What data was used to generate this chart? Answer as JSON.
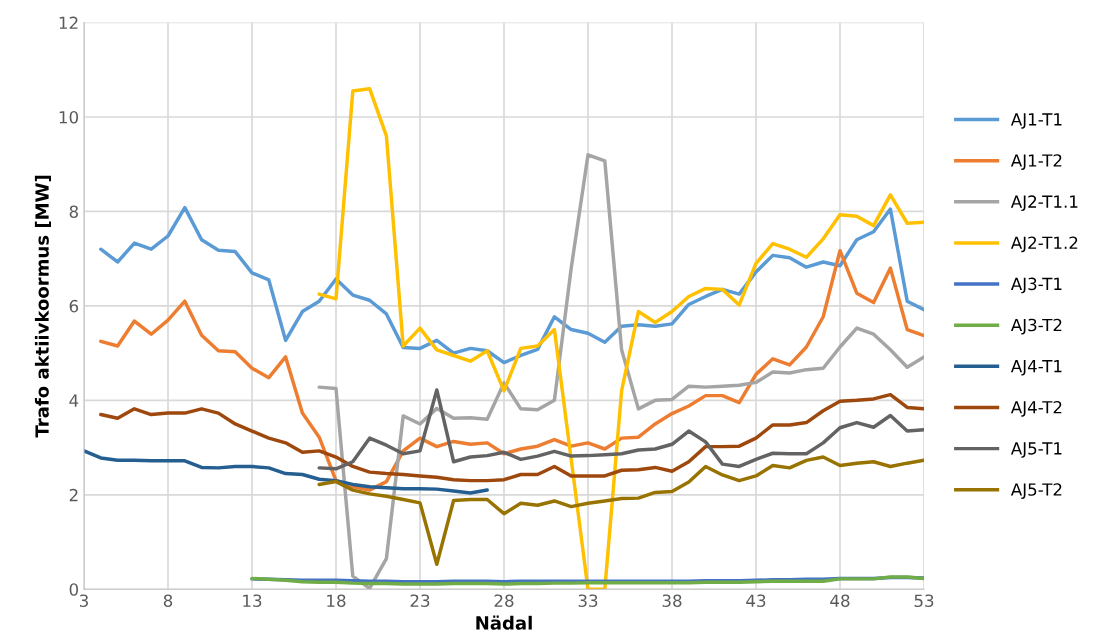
{
  "chart_data": {
    "type": "line",
    "xlabel": "Nädal",
    "ylabel": "Trafo aktiivkoormus [MW]",
    "xlim": [
      3,
      53
    ],
    "xticks": [
      3,
      8,
      13,
      18,
      23,
      28,
      33,
      38,
      43,
      48,
      53
    ],
    "ylim": [
      0,
      12
    ],
    "yticks": [
      0,
      2,
      4,
      6,
      8,
      10,
      12
    ],
    "grid": true,
    "legend": "right",
    "marker": "none",
    "line_style": "solid",
    "series": [
      {
        "name": "AJ1-T1",
        "color": "#5b9bd5",
        "x": [
          4,
          5,
          6,
          7,
          8,
          9,
          10,
          11,
          12,
          13,
          14,
          15,
          16,
          17,
          18,
          19,
          20,
          21,
          22,
          23,
          24,
          25,
          26,
          27,
          28,
          29,
          30,
          31,
          32,
          33,
          34,
          35,
          36,
          37,
          38,
          39,
          40,
          41,
          42,
          43,
          44,
          45,
          46,
          47,
          48,
          49,
          50,
          51,
          52,
          53
        ],
        "values": [
          7.2,
          6.93,
          7.33,
          7.2,
          7.48,
          8.08,
          7.4,
          7.18,
          7.15,
          6.7,
          6.55,
          5.27,
          5.88,
          6.1,
          6.57,
          6.23,
          6.12,
          5.83,
          5.12,
          5.1,
          5.27,
          5.0,
          5.1,
          5.05,
          4.8,
          4.95,
          5.08,
          5.77,
          5.5,
          5.42,
          5.23,
          5.57,
          5.6,
          5.57,
          5.62,
          6.03,
          6.2,
          6.35,
          6.25,
          6.72,
          7.07,
          7.02,
          6.82,
          6.93,
          6.85,
          7.4,
          7.57,
          8.05,
          6.1,
          5.92
        ]
      },
      {
        "name": "AJ1-T2",
        "color": "#ed7d31",
        "x": [
          4,
          5,
          6,
          7,
          8,
          9,
          10,
          11,
          12,
          13,
          14,
          15,
          16,
          17,
          18,
          19,
          20,
          21,
          22,
          23,
          24,
          25,
          26,
          27,
          28,
          29,
          30,
          31,
          32,
          33,
          34,
          35,
          36,
          37,
          38,
          39,
          40,
          41,
          42,
          43,
          44,
          45,
          46,
          47,
          48,
          49,
          50,
          51,
          52,
          53
        ],
        "values": [
          5.25,
          5.15,
          5.68,
          5.4,
          5.7,
          6.1,
          5.38,
          5.05,
          5.03,
          4.68,
          4.48,
          4.92,
          3.73,
          3.22,
          2.3,
          2.17,
          2.1,
          2.28,
          2.93,
          3.2,
          3.02,
          3.13,
          3.07,
          3.1,
          2.87,
          2.97,
          3.03,
          3.17,
          3.03,
          3.1,
          2.97,
          3.2,
          3.22,
          3.5,
          3.72,
          3.88,
          4.1,
          4.1,
          3.95,
          4.55,
          4.88,
          4.75,
          5.13,
          5.77,
          7.17,
          6.27,
          6.07,
          6.8,
          5.5,
          5.37
        ]
      },
      {
        "name": "AJ2-T1.1",
        "color": "#a5a5a5",
        "x": [
          17,
          18,
          19,
          20,
          21,
          22,
          23,
          24,
          25,
          26,
          27,
          28,
          29,
          30,
          31,
          32,
          33,
          34,
          35,
          36,
          37,
          38,
          39,
          40,
          41,
          42,
          43,
          44,
          45,
          46,
          47,
          48,
          49,
          50,
          51,
          52,
          53
        ],
        "values": [
          4.28,
          4.25,
          0.28,
          0.02,
          0.65,
          3.67,
          3.5,
          3.83,
          3.62,
          3.63,
          3.6,
          4.37,
          3.82,
          3.8,
          4.0,
          6.8,
          9.2,
          9.07,
          5.07,
          3.82,
          4.0,
          4.02,
          4.3,
          4.28,
          4.3,
          4.32,
          4.38,
          4.6,
          4.58,
          4.65,
          4.68,
          5.13,
          5.53,
          5.4,
          5.07,
          4.7,
          4.92
        ]
      },
      {
        "name": "AJ2-T1.2",
        "color": "#ffc000",
        "x": [
          17,
          18,
          19,
          20,
          21,
          22,
          23,
          24,
          25,
          26,
          27,
          28,
          29,
          30,
          31,
          32,
          33,
          34,
          35,
          36,
          37,
          38,
          39,
          40,
          41,
          42,
          43,
          44,
          45,
          46,
          47,
          48,
          49,
          50,
          51,
          52,
          53
        ],
        "values": [
          6.25,
          6.15,
          10.55,
          10.6,
          9.6,
          5.15,
          5.53,
          5.07,
          4.95,
          4.83,
          5.05,
          4.2,
          5.1,
          5.15,
          5.5,
          2.75,
          0.0,
          0.0,
          4.2,
          5.88,
          5.65,
          5.88,
          6.2,
          6.37,
          6.35,
          6.02,
          6.9,
          7.32,
          7.2,
          7.03,
          7.42,
          7.93,
          7.9,
          7.7,
          8.35,
          7.75,
          7.77
        ]
      },
      {
        "name": "AJ3-T1",
        "color": "#4472c4",
        "x": [
          13,
          14,
          15,
          16,
          17,
          18,
          19,
          20,
          21,
          22,
          23,
          24,
          25,
          26,
          27,
          28,
          29,
          30,
          31,
          32,
          33,
          34,
          35,
          36,
          37,
          38,
          39,
          40,
          41,
          42,
          43,
          44,
          45,
          46,
          47,
          48,
          49,
          50,
          51,
          52,
          53
        ],
        "values": [
          0.22,
          0.21,
          0.2,
          0.19,
          0.19,
          0.19,
          0.18,
          0.17,
          0.17,
          0.16,
          0.16,
          0.16,
          0.17,
          0.17,
          0.17,
          0.16,
          0.17,
          0.17,
          0.17,
          0.17,
          0.17,
          0.17,
          0.17,
          0.17,
          0.17,
          0.17,
          0.17,
          0.18,
          0.18,
          0.18,
          0.19,
          0.2,
          0.2,
          0.21,
          0.21,
          0.23,
          0.23,
          0.23,
          0.25,
          0.25,
          0.24
        ]
      },
      {
        "name": "AJ3-T2",
        "color": "#70ad47",
        "x": [
          13,
          14,
          15,
          16,
          17,
          18,
          19,
          20,
          21,
          22,
          23,
          24,
          25,
          26,
          27,
          28,
          29,
          30,
          31,
          32,
          33,
          34,
          35,
          36,
          37,
          38,
          39,
          40,
          41,
          42,
          43,
          44,
          45,
          46,
          47,
          48,
          49,
          50,
          51,
          52,
          53
        ],
        "values": [
          0.23,
          0.21,
          0.19,
          0.16,
          0.15,
          0.15,
          0.13,
          0.12,
          0.12,
          0.11,
          0.11,
          0.11,
          0.12,
          0.12,
          0.12,
          0.11,
          0.12,
          0.12,
          0.13,
          0.13,
          0.14,
          0.14,
          0.14,
          0.14,
          0.14,
          0.14,
          0.14,
          0.15,
          0.15,
          0.15,
          0.16,
          0.17,
          0.17,
          0.17,
          0.17,
          0.22,
          0.22,
          0.22,
          0.26,
          0.26,
          0.23
        ]
      },
      {
        "name": "AJ4-T1",
        "color": "#255e91",
        "x": [
          3,
          4,
          5,
          6,
          7,
          8,
          9,
          10,
          11,
          12,
          13,
          14,
          15,
          16,
          17,
          18,
          19,
          20,
          21,
          22,
          23,
          24,
          25,
          26,
          27
        ],
        "values": [
          2.93,
          2.78,
          2.73,
          2.73,
          2.72,
          2.72,
          2.72,
          2.58,
          2.57,
          2.6,
          2.6,
          2.57,
          2.45,
          2.43,
          2.33,
          2.3,
          2.22,
          2.17,
          2.15,
          2.13,
          2.13,
          2.12,
          2.08,
          2.04,
          2.1
        ]
      },
      {
        "name": "AJ4-T2",
        "color": "#9e480e",
        "x": [
          4,
          5,
          6,
          7,
          8,
          9,
          10,
          11,
          12,
          13,
          14,
          15,
          16,
          17,
          18,
          19,
          20,
          21,
          22,
          23,
          24,
          25,
          26,
          27,
          28,
          29,
          30,
          31,
          32,
          33,
          34,
          35,
          36,
          37,
          38,
          39,
          40,
          41,
          42,
          43,
          44,
          45,
          46,
          47,
          48,
          49,
          50,
          51,
          52,
          53
        ],
        "values": [
          3.7,
          3.62,
          3.82,
          3.7,
          3.73,
          3.73,
          3.82,
          3.73,
          3.5,
          3.35,
          3.2,
          3.1,
          2.9,
          2.93,
          2.8,
          2.6,
          2.48,
          2.45,
          2.43,
          2.4,
          2.37,
          2.32,
          2.3,
          2.3,
          2.32,
          2.43,
          2.43,
          2.6,
          2.4,
          2.4,
          2.4,
          2.52,
          2.53,
          2.58,
          2.5,
          2.7,
          3.02,
          3.02,
          3.03,
          3.2,
          3.48,
          3.48,
          3.53,
          3.78,
          3.98,
          4.0,
          4.03,
          4.12,
          3.85,
          3.82
        ]
      },
      {
        "name": "AJ5-T1",
        "color": "#636363",
        "x": [
          17,
          18,
          19,
          20,
          21,
          22,
          23,
          24,
          25,
          26,
          27,
          28,
          29,
          30,
          31,
          32,
          33,
          34,
          35,
          36,
          37,
          38,
          39,
          40,
          41,
          42,
          43,
          44,
          45,
          46,
          47,
          48,
          49,
          50,
          51,
          52,
          53
        ],
        "values": [
          2.57,
          2.55,
          2.7,
          3.2,
          3.05,
          2.87,
          2.93,
          4.22,
          2.7,
          2.8,
          2.83,
          2.9,
          2.75,
          2.82,
          2.92,
          2.82,
          2.83,
          2.85,
          2.87,
          2.95,
          2.97,
          3.07,
          3.35,
          3.12,
          2.65,
          2.6,
          2.75,
          2.88,
          2.87,
          2.87,
          3.1,
          3.42,
          3.53,
          3.43,
          3.68,
          3.35,
          3.38
        ]
      },
      {
        "name": "AJ5-T2",
        "color": "#997300",
        "x": [
          17,
          18,
          19,
          20,
          21,
          22,
          23,
          24,
          25,
          26,
          27,
          28,
          29,
          30,
          31,
          32,
          33,
          34,
          35,
          36,
          37,
          38,
          39,
          40,
          41,
          42,
          43,
          44,
          45,
          46,
          47,
          48,
          49,
          50,
          51,
          52,
          53
        ],
        "values": [
          2.22,
          2.28,
          2.1,
          2.02,
          1.97,
          1.9,
          1.83,
          0.53,
          1.88,
          1.9,
          1.9,
          1.6,
          1.82,
          1.78,
          1.87,
          1.75,
          1.82,
          1.87,
          1.92,
          1.93,
          2.05,
          2.07,
          2.27,
          2.6,
          2.42,
          2.3,
          2.4,
          2.62,
          2.57,
          2.73,
          2.8,
          2.62,
          2.67,
          2.7,
          2.6,
          2.67,
          2.73
        ]
      }
    ]
  }
}
